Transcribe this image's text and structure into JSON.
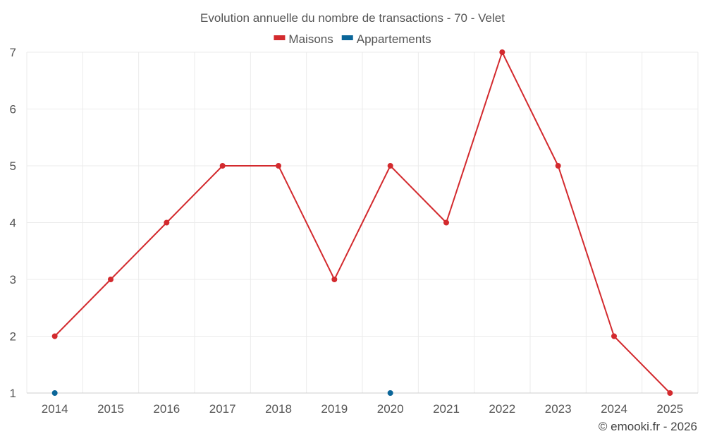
{
  "chart_data": {
    "type": "line",
    "title": "Evolution annuelle du nombre de transactions - 70 - Velet",
    "categories": [
      "2014",
      "2015",
      "2016",
      "2017",
      "2018",
      "2019",
      "2020",
      "2021",
      "2022",
      "2023",
      "2024",
      "2025"
    ],
    "series": [
      {
        "name": "Maisons",
        "color": "#d32a2e",
        "values": [
          2,
          3,
          4,
          5,
          5,
          3,
          5,
          4,
          7,
          5,
          2,
          1
        ]
      },
      {
        "name": "Appartements",
        "color": "#0b6699",
        "values": [
          1,
          null,
          null,
          null,
          null,
          null,
          1,
          null,
          null,
          null,
          null,
          null
        ]
      }
    ],
    "ylim": [
      1,
      7
    ],
    "yticks": [
      1,
      2,
      3,
      4,
      5,
      6,
      7
    ],
    "grid": true,
    "legend_position": "top-center",
    "xlabel": "",
    "ylabel": ""
  },
  "credit": "© emooki.fr - 2026"
}
